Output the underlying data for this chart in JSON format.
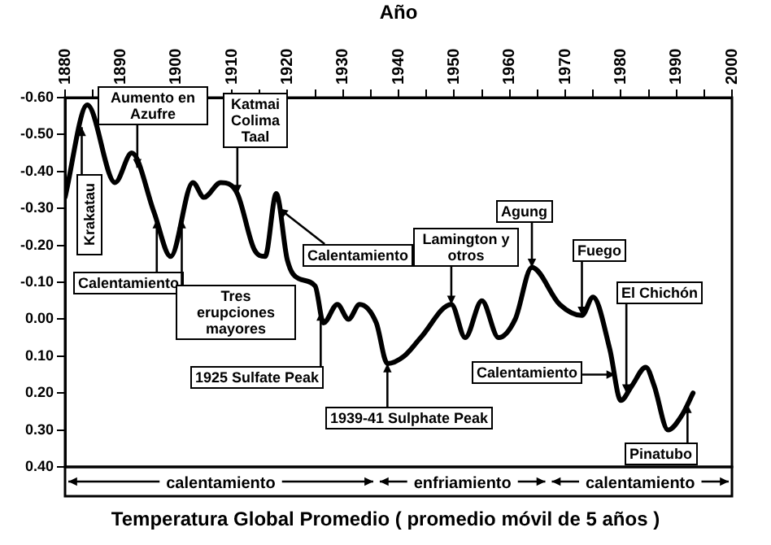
{
  "chart_data": {
    "type": "line",
    "title": "Temperatura Global Promedio ( promedio móvil de 5 años )",
    "xlabel": "Año",
    "x": [
      1880,
      1884,
      1889,
      1892,
      1896,
      1899,
      1903,
      1905,
      1908,
      1911,
      1914,
      1916,
      1918,
      1920,
      1922,
      1925,
      1926.5,
      1929,
      1931,
      1933,
      1936,
      1938,
      1941,
      1944,
      1949.5,
      1952,
      1955,
      1958,
      1961,
      1964,
      1969,
      1973,
      1975,
      1978,
      1980,
      1982,
      1984.5,
      1986,
      1988.5,
      1991,
      1993
    ],
    "series": [
      {
        "color": "#000000",
        "values": [
          -0.33,
          -0.58,
          -0.37,
          -0.45,
          -0.29,
          -0.17,
          -0.37,
          -0.33,
          -0.37,
          -0.34,
          -0.19,
          -0.17,
          -0.34,
          -0.16,
          -0.11,
          -0.09,
          0.01,
          -0.04,
          0.0,
          -0.04,
          0.01,
          0.12,
          0.1,
          0.05,
          -0.04,
          0.05,
          -0.05,
          0.05,
          0.0,
          -0.14,
          -0.04,
          -0.01,
          -0.06,
          0.08,
          0.22,
          0.18,
          0.13,
          0.18,
          0.3,
          0.26,
          0.2
        ]
      }
    ],
    "xlim": [
      1880,
      2000
    ],
    "xticks": [
      1880,
      {
        "value": 1885,
        "label": null
      },
      1890,
      {
        "value": 1895,
        "label": null
      },
      1900,
      {
        "value": 1905,
        "label": null
      },
      1910,
      {
        "value": 1915,
        "label": null
      },
      1920,
      {
        "value": 1925,
        "label": null
      },
      1930,
      {
        "value": 1935,
        "label": null
      },
      1940,
      {
        "value": 1945,
        "label": null
      },
      1950,
      {
        "value": 1955,
        "label": null
      },
      1960,
      {
        "value": 1965,
        "label": null
      },
      1970,
      {
        "value": 1975,
        "label": null
      },
      1980,
      {
        "value": 1985,
        "label": null
      },
      1990,
      {
        "value": 1995,
        "label": null
      },
      2000
    ],
    "ylim": [
      0.4,
      -0.6
    ],
    "yticks": [
      {
        "value": -0.6,
        "label": "-0.60"
      },
      {
        "value": -0.5,
        "label": "-0.50"
      },
      {
        "value": -0.4,
        "label": "-0.40"
      },
      {
        "value": -0.3,
        "label": "-0.30"
      },
      {
        "value": -0.2,
        "label": "-0.20"
      },
      {
        "value": -0.1,
        "label": "-0.10"
      },
      {
        "value": 0,
        "label": "0.00"
      },
      {
        "value": 0.1,
        "label": "0.10"
      },
      {
        "value": 0.2,
        "label": "0.20"
      },
      {
        "value": 0.3,
        "label": "0.30"
      },
      {
        "value": 0.4,
        "label": "0.40"
      }
    ],
    "grid": false,
    "legend": false,
    "marker": "none",
    "line_style": "solid",
    "annotations": [
      {
        "text": "Krakatau",
        "x": 1883,
        "y": -0.52
      },
      {
        "text": "Aumento en Azufre",
        "x": 1893,
        "y": -0.41
      },
      {
        "text": "Katmai Colima Taal",
        "x": 1911,
        "y": -0.34
      },
      {
        "text": "Calentamiento",
        "x": 1918.5,
        "y": -0.3
      },
      {
        "text": "Calentamiento",
        "x": 1896.5,
        "y": -0.27
      },
      {
        "text": "Tres erupciones mayores",
        "x": 1901,
        "y": -0.27
      },
      {
        "text": "1925 Sulfate Peak",
        "x": 1926,
        "y": -0.02
      },
      {
        "text": "1939-41 Sulphate Peak",
        "x": 1938,
        "y": 0.12
      },
      {
        "text": "Lamington y otros",
        "x": 1949.5,
        "y": -0.04
      },
      {
        "text": "Agung",
        "x": 1964,
        "y": -0.14
      },
      {
        "text": "Fuego",
        "x": 1973,
        "y": -0.01
      },
      {
        "text": "El Chichón",
        "x": 1981,
        "y": 0.2
      },
      {
        "text": "Calentamiento",
        "x": 1979,
        "y": 0.15
      },
      {
        "text": "Pinatubo",
        "x": 1992,
        "y": 0.23
      },
      "calentamiento",
      "enfriamiento",
      "calentamiento"
    ]
  }
}
